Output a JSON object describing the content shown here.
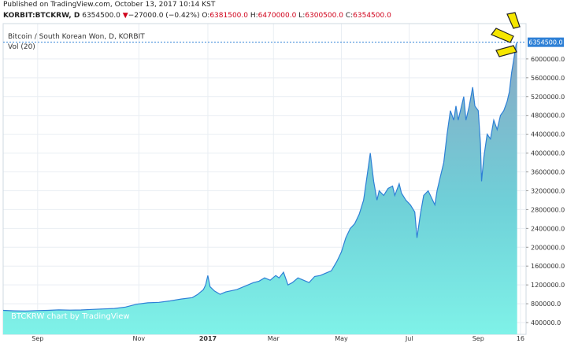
{
  "header": {
    "published": "Published on TradingView.com, October 13, 2017 10:14 KST",
    "symbol": "KORBIT:BTCKRW, D",
    "last": "6354500.0",
    "change_arrow": "▼",
    "change": "−27000.0 (−0.42%)",
    "open_label": "O:",
    "open": "6381500.0",
    "high_label": "H:",
    "high": "6470000.0",
    "low_label": "L:",
    "low": "6300500.0",
    "close_label": "C:",
    "close": "6354500.0"
  },
  "chart_data": {
    "type": "area",
    "title": "Bitcoin / South Korean Won, D, KORBIT",
    "volume_label": "Vol (20)",
    "watermark": "BTCKRW chart by TradingView",
    "last_price_label": "6354500.0",
    "last_price": 6354500,
    "ylim": [
      150000,
      6750000
    ],
    "y_ticks": [
      {
        "value": 6000000,
        "label": "6000000.0"
      },
      {
        "value": 5600000,
        "label": "5600000.0"
      },
      {
        "value": 5200000,
        "label": "5200000.0"
      },
      {
        "value": 4800000,
        "label": "4800000.0"
      },
      {
        "value": 4400000,
        "label": "4400000.0"
      },
      {
        "value": 4000000,
        "label": "4000000.0"
      },
      {
        "value": 3600000,
        "label": "3600000.0"
      },
      {
        "value": 3200000,
        "label": "3200000.0"
      },
      {
        "value": 2800000,
        "label": "2800000.0"
      },
      {
        "value": 2400000,
        "label": "2400000.0"
      },
      {
        "value": 2000000,
        "label": "2000000.0"
      },
      {
        "value": 1600000,
        "label": "1600000.0"
      },
      {
        "value": 1200000,
        "label": "1200000.0"
      },
      {
        "value": 800000,
        "label": "800000.0"
      },
      {
        "value": 400000,
        "label": "400000.0"
      }
    ],
    "x_ticks": [
      {
        "day": 31,
        "label": "Sep",
        "bold": false
      },
      {
        "day": 122,
        "label": "Nov",
        "bold": false
      },
      {
        "day": 184,
        "label": "2017",
        "bold": true
      },
      {
        "day": 243,
        "label": "Mar",
        "bold": false
      },
      {
        "day": 304,
        "label": "May",
        "bold": false
      },
      {
        "day": 365,
        "label": "Jul",
        "bold": false
      },
      {
        "day": 427,
        "label": "Sep",
        "bold": false
      },
      {
        "day": 465,
        "label": "16",
        "bold": false
      }
    ],
    "x_range_days": [
      0,
      470
    ],
    "series": [
      {
        "points": [
          [
            0,
            660000
          ],
          [
            10,
            650000
          ],
          [
            20,
            645000
          ],
          [
            30,
            655000
          ],
          [
            40,
            660000
          ],
          [
            50,
            670000
          ],
          [
            60,
            665000
          ],
          [
            70,
            668000
          ],
          [
            80,
            680000
          ],
          [
            90,
            690000
          ],
          [
            100,
            700000
          ],
          [
            110,
            730000
          ],
          [
            120,
            790000
          ],
          [
            130,
            820000
          ],
          [
            140,
            830000
          ],
          [
            150,
            860000
          ],
          [
            160,
            900000
          ],
          [
            170,
            930000
          ],
          [
            175,
            1000000
          ],
          [
            180,
            1100000
          ],
          [
            182,
            1200000
          ],
          [
            184,
            1400000
          ],
          [
            186,
            1160000
          ],
          [
            190,
            1070000
          ],
          [
            195,
            1000000
          ],
          [
            200,
            1050000
          ],
          [
            210,
            1100000
          ],
          [
            220,
            1200000
          ],
          [
            225,
            1250000
          ],
          [
            230,
            1280000
          ],
          [
            235,
            1350000
          ],
          [
            240,
            1300000
          ],
          [
            245,
            1400000
          ],
          [
            248,
            1350000
          ],
          [
            252,
            1470000
          ],
          [
            256,
            1200000
          ],
          [
            260,
            1250000
          ],
          [
            265,
            1350000
          ],
          [
            270,
            1300000
          ],
          [
            275,
            1250000
          ],
          [
            280,
            1380000
          ],
          [
            285,
            1400000
          ],
          [
            290,
            1450000
          ],
          [
            295,
            1500000
          ],
          [
            300,
            1700000
          ],
          [
            304,
            1900000
          ],
          [
            308,
            2200000
          ],
          [
            312,
            2400000
          ],
          [
            316,
            2500000
          ],
          [
            320,
            2700000
          ],
          [
            324,
            3000000
          ],
          [
            327,
            3500000
          ],
          [
            330,
            4000000
          ],
          [
            333,
            3400000
          ],
          [
            336,
            3000000
          ],
          [
            338,
            3200000
          ],
          [
            342,
            3100000
          ],
          [
            346,
            3250000
          ],
          [
            350,
            3300000
          ],
          [
            352,
            3100000
          ],
          [
            356,
            3350000
          ],
          [
            358,
            3150000
          ],
          [
            362,
            3000000
          ],
          [
            366,
            2900000
          ],
          [
            370,
            2750000
          ],
          [
            372,
            2200000
          ],
          [
            375,
            2700000
          ],
          [
            378,
            3100000
          ],
          [
            382,
            3200000
          ],
          [
            384,
            3100000
          ],
          [
            388,
            2900000
          ],
          [
            390,
            3200000
          ],
          [
            393,
            3500000
          ],
          [
            396,
            3800000
          ],
          [
            399,
            4400000
          ],
          [
            402,
            4900000
          ],
          [
            405,
            4700000
          ],
          [
            407,
            5000000
          ],
          [
            409,
            4700000
          ],
          [
            412,
            5000000
          ],
          [
            414,
            5200000
          ],
          [
            416,
            4700000
          ],
          [
            419,
            5000000
          ],
          [
            422,
            5400000
          ],
          [
            424,
            5000000
          ],
          [
            427,
            4900000
          ],
          [
            429,
            4200000
          ],
          [
            430,
            3400000
          ],
          [
            432,
            3900000
          ],
          [
            435,
            4400000
          ],
          [
            438,
            4300000
          ],
          [
            441,
            4700000
          ],
          [
            444,
            4500000
          ],
          [
            447,
            4800000
          ],
          [
            450,
            4900000
          ],
          [
            453,
            5100000
          ],
          [
            455,
            5300000
          ],
          [
            457,
            5700000
          ],
          [
            459,
            6000000
          ],
          [
            461,
            6300000
          ],
          [
            462,
            6354500
          ]
        ]
      }
    ]
  }
}
